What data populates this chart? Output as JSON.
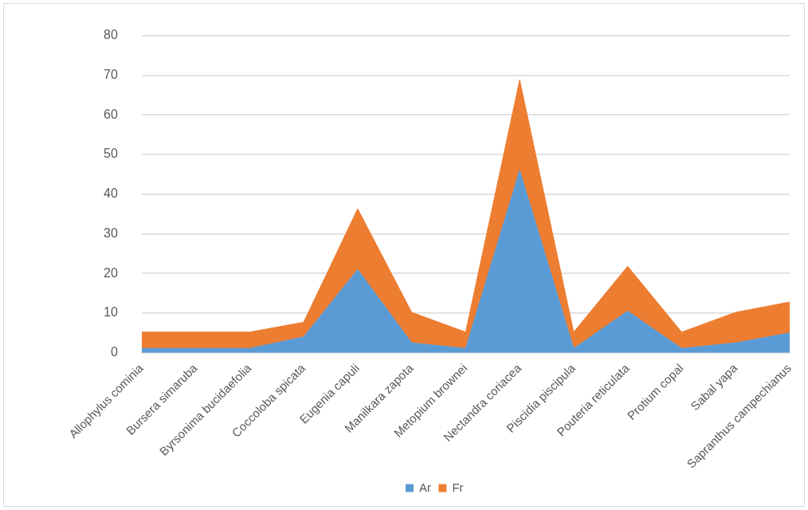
{
  "chart_data": {
    "type": "area",
    "stacked": true,
    "categories": [
      "Allophylus cominia",
      "Bursera simaruba",
      "Byrsonima bucidaefolia",
      "Coccoloba spicata",
      "Eugenia capuli",
      "Manilkara zapota",
      "Metopium brownei",
      "Nectandra coriacea",
      "Piscidia piscipula",
      "Pouteria reticulata",
      "Protium copal",
      "Sabal yapa",
      "Sapranthus campechianus"
    ],
    "series": [
      {
        "name": "Ar",
        "color": "#5b9bd5",
        "values": [
          1.1,
          1.1,
          1.1,
          4,
          21,
          2.5,
          1.1,
          46,
          1.1,
          10.5,
          1.1,
          2.5,
          5
        ]
      },
      {
        "name": "Fr",
        "color": "#ed7d31",
        "values": [
          4.1,
          4.1,
          4.1,
          3.7,
          15.3,
          7.7,
          4.1,
          22.8,
          4.1,
          11.3,
          4.1,
          7.7,
          7.8
        ]
      }
    ],
    "ylim": [
      0,
      80
    ],
    "yticks": [
      0,
      10,
      20,
      30,
      40,
      50,
      60,
      70,
      80
    ],
    "grid": "y",
    "legend": "bottom"
  }
}
